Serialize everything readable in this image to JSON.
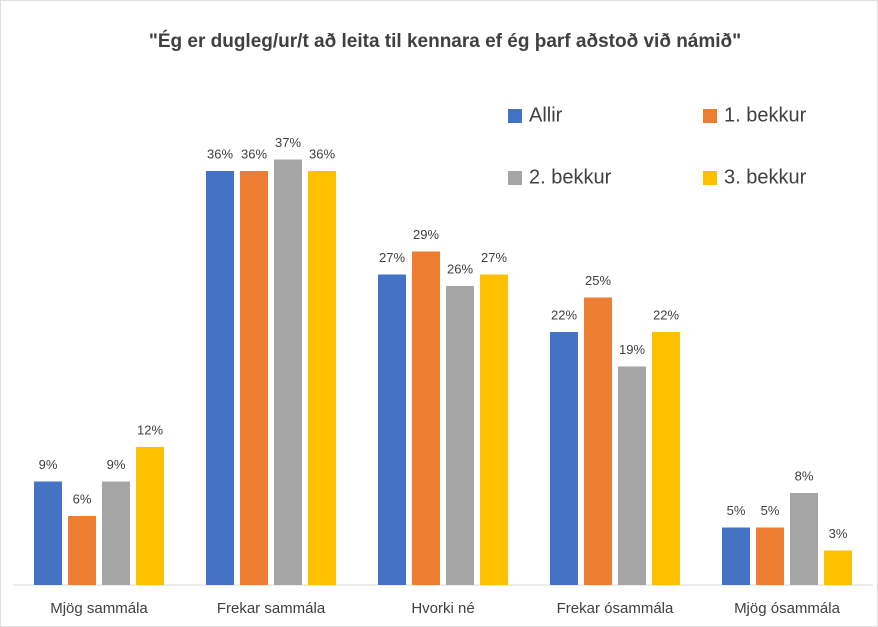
{
  "chart_data": {
    "type": "bar",
    "title": "\"Ég er dugleg/ur/t að leita til kennara ef ég þarf aðstoð við námið\"",
    "categories": [
      "Mjög sammála",
      "Frekar sammála",
      "Hvorki né",
      "Frekar ósammála",
      "Mjög ósammála"
    ],
    "series": [
      {
        "name": "Allir",
        "color": "#4472c4",
        "values": [
          9,
          36,
          27,
          22,
          5
        ],
        "value_labels": [
          "9%",
          "36%",
          "27%",
          "22%",
          "5%"
        ]
      },
      {
        "name": "1. bekkur",
        "color": "#ed7d31",
        "values": [
          6,
          36,
          29,
          25,
          5
        ],
        "value_labels": [
          "6%",
          "36%",
          "29%",
          "25%",
          "5%"
        ]
      },
      {
        "name": "2. bekkur",
        "color": "#a5a5a5",
        "values": [
          9,
          37,
          26,
          19,
          8
        ],
        "value_labels": [
          "9%",
          "37%",
          "26%",
          "19%",
          "8%"
        ]
      },
      {
        "name": "3. bekkur",
        "color": "#ffc000",
        "values": [
          12,
          36,
          27,
          22,
          3
        ],
        "value_labels": [
          "12%",
          "36%",
          "27%",
          "22%",
          "3%"
        ]
      }
    ],
    "legend": "top-right"
  }
}
